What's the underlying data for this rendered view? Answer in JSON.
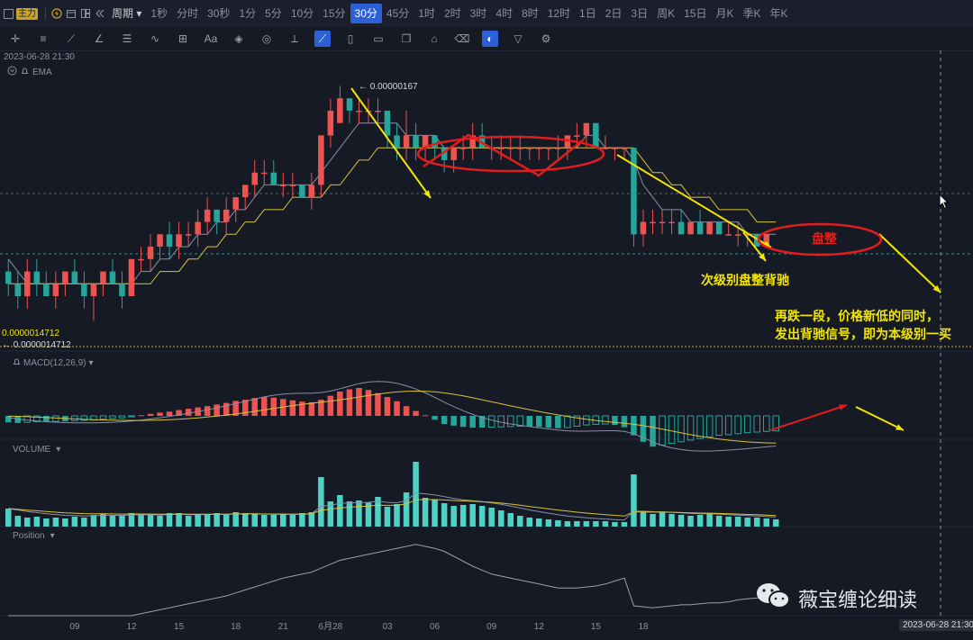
{
  "toolbar": {
    "main_label": "主力",
    "period_label": "周期",
    "periods": [
      "1秒",
      "分时",
      "30秒",
      "1分",
      "5分",
      "10分",
      "15分",
      "30分",
      "45分",
      "1时",
      "2时",
      "3时",
      "4时",
      "8时",
      "12时",
      "1日",
      "2日",
      "3日",
      "周K",
      "15日",
      "月K",
      "季K",
      "年K"
    ],
    "active_period": "30分",
    "tools": [
      "crosshair-icon",
      "horizontal-line-icon",
      "trend-line-icon",
      "angle-icon",
      "channel-icon",
      "wave-icon",
      "measure-icon",
      "text-icon",
      "fib-icon",
      "pattern-icon",
      "ruler-icon",
      "brush-icon",
      "shapes-icon",
      "note-icon",
      "copy-icon",
      "lock-icon",
      "trash-icon",
      "magnet-icon",
      "filter-icon",
      "settings-icon"
    ]
  },
  "chart_header": {
    "datetime": "2023-06-28 21:30",
    "indicator": "EMA"
  },
  "price_labels": {
    "high_marker": "← 0.00000167",
    "low_value": "0.0000014712",
    "low_marker": "← 0.0000014712"
  },
  "panels": {
    "macd_label": "MACD(12,26,9)",
    "volume_label": "VOLUME",
    "position_label": "Position"
  },
  "annotations": {
    "consolidation": "盘整",
    "divergence": "次级别盘整背驰",
    "note_line1": "再跌一段，价格新低的同时，",
    "note_line2": "发出背驰信号，即为本级别一买"
  },
  "watermark": "薇宝缠论细读",
  "crosshair_time": "2023-06-28 21:30",
  "colors": {
    "up": "#ef5350",
    "down": "#26a69a",
    "annotation_yellow": "#f3e600",
    "annotation_red": "#e01e1e"
  },
  "chart_data": {
    "type": "candlestick",
    "x_axis_labels": [
      "09",
      "12",
      "15",
      "18",
      "21",
      "6月28",
      "03",
      "06",
      "09",
      "12",
      "15",
      "18"
    ],
    "price_range": [
      1.46e-06,
      1.69e-06
    ],
    "candles": [
      {
        "o": 1.52e-06,
        "h": 1.53e-06,
        "l": 1.5e-06,
        "c": 1.51e-06
      },
      {
        "o": 1.51e-06,
        "h": 1.52e-06,
        "l": 1.49e-06,
        "c": 1.5e-06
      },
      {
        "o": 1.5e-06,
        "h": 1.53e-06,
        "l": 1.49e-06,
        "c": 1.52e-06
      },
      {
        "o": 1.52e-06,
        "h": 1.53e-06,
        "l": 1.5e-06,
        "c": 1.51e-06
      },
      {
        "o": 1.51e-06,
        "h": 1.52e-06,
        "l": 1.5e-06,
        "c": 1.5e-06
      },
      {
        "o": 1.5e-06,
        "h": 1.52e-06,
        "l": 1.49e-06,
        "c": 1.51e-06
      },
      {
        "o": 1.51e-06,
        "h": 1.52e-06,
        "l": 1.5e-06,
        "c": 1.52e-06
      },
      {
        "o": 1.52e-06,
        "h": 1.53e-06,
        "l": 1.51e-06,
        "c": 1.51e-06
      },
      {
        "o": 1.51e-06,
        "h": 1.52e-06,
        "l": 1.49e-06,
        "c": 1.5e-06
      },
      {
        "o": 1.5e-06,
        "h": 1.51e-06,
        "l": 1.48e-06,
        "c": 1.51e-06
      },
      {
        "o": 1.51e-06,
        "h": 1.52e-06,
        "l": 1.5e-06,
        "c": 1.52e-06
      },
      {
        "o": 1.52e-06,
        "h": 1.53e-06,
        "l": 1.51e-06,
        "c": 1.51e-06
      },
      {
        "o": 1.51e-06,
        "h": 1.52e-06,
        "l": 1.49e-06,
        "c": 1.5e-06
      },
      {
        "o": 1.5e-06,
        "h": 1.53e-06,
        "l": 1.5e-06,
        "c": 1.53e-06
      },
      {
        "o": 1.53e-06,
        "h": 1.54e-06,
        "l": 1.52e-06,
        "c": 1.53e-06
      },
      {
        "o": 1.53e-06,
        "h": 1.55e-06,
        "l": 1.52e-06,
        "c": 1.54e-06
      },
      {
        "o": 1.54e-06,
        "h": 1.55e-06,
        "l": 1.53e-06,
        "c": 1.55e-06
      },
      {
        "o": 1.55e-06,
        "h": 1.56e-06,
        "l": 1.53e-06,
        "c": 1.54e-06
      },
      {
        "o": 1.54e-06,
        "h": 1.56e-06,
        "l": 1.53e-06,
        "c": 1.55e-06
      },
      {
        "o": 1.55e-06,
        "h": 1.56e-06,
        "l": 1.54e-06,
        "c": 1.55e-06
      },
      {
        "o": 1.55e-06,
        "h": 1.57e-06,
        "l": 1.54e-06,
        "c": 1.56e-06
      },
      {
        "o": 1.56e-06,
        "h": 1.58e-06,
        "l": 1.55e-06,
        "c": 1.57e-06
      },
      {
        "o": 1.57e-06,
        "h": 1.57e-06,
        "l": 1.55e-06,
        "c": 1.56e-06
      },
      {
        "o": 1.56e-06,
        "h": 1.58e-06,
        "l": 1.55e-06,
        "c": 1.57e-06
      },
      {
        "o": 1.57e-06,
        "h": 1.58e-06,
        "l": 1.56e-06,
        "c": 1.58e-06
      },
      {
        "o": 1.58e-06,
        "h": 1.59e-06,
        "l": 1.57e-06,
        "c": 1.59e-06
      },
      {
        "o": 1.59e-06,
        "h": 1.61e-06,
        "l": 1.58e-06,
        "c": 1.6e-06
      },
      {
        "o": 1.6e-06,
        "h": 1.61e-06,
        "l": 1.59e-06,
        "c": 1.6e-06
      },
      {
        "o": 1.6e-06,
        "h": 1.61e-06,
        "l": 1.59e-06,
        "c": 1.59e-06
      },
      {
        "o": 1.59e-06,
        "h": 1.6e-06,
        "l": 1.58e-06,
        "c": 1.59e-06
      },
      {
        "o": 1.59e-06,
        "h": 1.6e-06,
        "l": 1.58e-06,
        "c": 1.59e-06
      },
      {
        "o": 1.59e-06,
        "h": 1.59e-06,
        "l": 1.58e-06,
        "c": 1.58e-06
      },
      {
        "o": 1.58e-06,
        "h": 1.6e-06,
        "l": 1.57e-06,
        "c": 1.59e-06
      },
      {
        "o": 1.59e-06,
        "h": 1.63e-06,
        "l": 1.58e-06,
        "c": 1.63e-06
      },
      {
        "o": 1.63e-06,
        "h": 1.66e-06,
        "l": 1.62e-06,
        "c": 1.65e-06
      },
      {
        "o": 1.64e-06,
        "h": 1.67e-06,
        "l": 1.64e-06,
        "c": 1.66e-06
      },
      {
        "o": 1.66e-06,
        "h": 1.66e-06,
        "l": 1.64e-06,
        "c": 1.65e-06
      },
      {
        "o": 1.65e-06,
        "h": 1.66e-06,
        "l": 1.64e-06,
        "c": 1.65e-06
      },
      {
        "o": 1.65e-06,
        "h": 1.66e-06,
        "l": 1.64e-06,
        "c": 1.65e-06
      },
      {
        "o": 1.65e-06,
        "h": 1.66e-06,
        "l": 1.64e-06,
        "c": 1.65e-06
      },
      {
        "o": 1.65e-06,
        "h": 1.65e-06,
        "l": 1.62e-06,
        "c": 1.63e-06
      },
      {
        "o": 1.63e-06,
        "h": 1.64e-06,
        "l": 1.61e-06,
        "c": 1.62e-06
      },
      {
        "o": 1.62e-06,
        "h": 1.65e-06,
        "l": 1.61e-06,
        "c": 1.63e-06
      },
      {
        "o": 1.63e-06,
        "h": 1.64e-06,
        "l": 1.61e-06,
        "c": 1.62e-06
      },
      {
        "o": 1.62e-06,
        "h": 1.63e-06,
        "l": 1.61e-06,
        "c": 1.63e-06
      },
      {
        "o": 1.63e-06,
        "h": 1.63e-06,
        "l": 1.61e-06,
        "c": 1.62e-06
      },
      {
        "o": 1.62e-06,
        "h": 1.62e-06,
        "l": 1.6e-06,
        "c": 1.61e-06
      },
      {
        "o": 1.61e-06,
        "h": 1.62e-06,
        "l": 1.6e-06,
        "c": 1.62e-06
      },
      {
        "o": 1.62e-06,
        "h": 1.63e-06,
        "l": 1.61e-06,
        "c": 1.62e-06
      },
      {
        "o": 1.62e-06,
        "h": 1.64e-06,
        "l": 1.61e-06,
        "c": 1.63e-06
      },
      {
        "o": 1.63e-06,
        "h": 1.64e-06,
        "l": 1.62e-06,
        "c": 1.62e-06
      },
      {
        "o": 1.62e-06,
        "h": 1.63e-06,
        "l": 1.61e-06,
        "c": 1.62e-06
      },
      {
        "o": 1.62e-06,
        "h": 1.63e-06,
        "l": 1.61e-06,
        "c": 1.62e-06
      },
      {
        "o": 1.62e-06,
        "h": 1.63e-06,
        "l": 1.61e-06,
        "c": 1.62e-06
      },
      {
        "o": 1.62e-06,
        "h": 1.63e-06,
        "l": 1.61e-06,
        "c": 1.62e-06
      },
      {
        "o": 1.62e-06,
        "h": 1.62e-06,
        "l": 1.61e-06,
        "c": 1.62e-06
      },
      {
        "o": 1.62e-06,
        "h": 1.62e-06,
        "l": 1.61e-06,
        "c": 1.62e-06
      },
      {
        "o": 1.62e-06,
        "h": 1.62e-06,
        "l": 1.61e-06,
        "c": 1.62e-06
      },
      {
        "o": 1.62e-06,
        "h": 1.63e-06,
        "l": 1.61e-06,
        "c": 1.62e-06
      },
      {
        "o": 1.62e-06,
        "h": 1.63e-06,
        "l": 1.61e-06,
        "c": 1.63e-06
      },
      {
        "o": 1.63e-06,
        "h": 1.64e-06,
        "l": 1.62e-06,
        "c": 1.63e-06
      },
      {
        "o": 1.63e-06,
        "h": 1.64e-06,
        "l": 1.62e-06,
        "c": 1.64e-06
      },
      {
        "o": 1.64e-06,
        "h": 1.64e-06,
        "l": 1.62e-06,
        "c": 1.62e-06
      },
      {
        "o": 1.62e-06,
        "h": 1.63e-06,
        "l": 1.62e-06,
        "c": 1.62e-06
      },
      {
        "o": 1.62e-06,
        "h": 1.62e-06,
        "l": 1.61e-06,
        "c": 1.62e-06
      },
      {
        "o": 1.62e-06,
        "h": 1.62e-06,
        "l": 1.61e-06,
        "c": 1.62e-06
      },
      {
        "o": 1.62e-06,
        "h": 1.62e-06,
        "l": 1.54e-06,
        "c": 1.55e-06
      },
      {
        "o": 1.55e-06,
        "h": 1.57e-06,
        "l": 1.54e-06,
        "c": 1.56e-06
      },
      {
        "o": 1.56e-06,
        "h": 1.57e-06,
        "l": 1.55e-06,
        "c": 1.56e-06
      },
      {
        "o": 1.56e-06,
        "h": 1.57e-06,
        "l": 1.55e-06,
        "c": 1.56e-06
      },
      {
        "o": 1.56e-06,
        "h": 1.57e-06,
        "l": 1.55e-06,
        "c": 1.56e-06
      },
      {
        "o": 1.56e-06,
        "h": 1.57e-06,
        "l": 1.55e-06,
        "c": 1.55e-06
      },
      {
        "o": 1.55e-06,
        "h": 1.56e-06,
        "l": 1.55e-06,
        "c": 1.56e-06
      },
      {
        "o": 1.56e-06,
        "h": 1.57e-06,
        "l": 1.55e-06,
        "c": 1.55e-06
      },
      {
        "o": 1.55e-06,
        "h": 1.56e-06,
        "l": 1.55e-06,
        "c": 1.56e-06
      },
      {
        "o": 1.56e-06,
        "h": 1.56e-06,
        "l": 1.55e-06,
        "c": 1.55e-06
      },
      {
        "o": 1.55e-06,
        "h": 1.56e-06,
        "l": 1.55e-06,
        "c": 1.55e-06
      },
      {
        "o": 1.55e-06,
        "h": 1.56e-06,
        "l": 1.54e-06,
        "c": 1.55e-06
      },
      {
        "o": 1.55e-06,
        "h": 1.55e-06,
        "l": 1.54e-06,
        "c": 1.55e-06
      },
      {
        "o": 1.55e-06,
        "h": 1.55e-06,
        "l": 1.54e-06,
        "c": 1.54e-06
      },
      {
        "o": 1.54e-06,
        "h": 1.55e-06,
        "l": 1.54e-06,
        "c": 1.55e-06
      }
    ],
    "ema_short": [
      1.53e-06,
      1.52e-06,
      1.51e-06,
      1.51e-06,
      1.51e-06,
      1.51e-06,
      1.51e-06,
      1.51e-06,
      1.51e-06,
      1.51e-06,
      1.51e-06,
      1.51e-06,
      1.51e-06,
      1.51e-06,
      1.52e-06,
      1.52e-06,
      1.53e-06,
      1.53e-06,
      1.54e-06,
      1.54e-06,
      1.55e-06,
      1.55e-06,
      1.56e-06,
      1.56e-06,
      1.57e-06,
      1.57e-06,
      1.58e-06,
      1.59e-06,
      1.59e-06,
      1.59e-06,
      1.59e-06,
      1.59e-06,
      1.59e-06,
      1.6e-06,
      1.61e-06,
      1.62e-06,
      1.63e-06,
      1.64e-06,
      1.64e-06,
      1.64e-06,
      1.64e-06,
      1.64e-06,
      1.63e-06,
      1.63e-06,
      1.63e-06,
      1.63e-06,
      1.62e-06,
      1.62e-06,
      1.62e-06,
      1.62e-06,
      1.62e-06,
      1.62e-06,
      1.62e-06,
      1.62e-06,
      1.62e-06,
      1.62e-06,
      1.62e-06,
      1.62e-06,
      1.62e-06,
      1.62e-06,
      1.62e-06,
      1.63e-06,
      1.63e-06,
      1.62e-06,
      1.62e-06,
      1.62e-06,
      1.61e-06,
      1.59e-06,
      1.58e-06,
      1.57e-06,
      1.57e-06,
      1.57e-06,
      1.56e-06,
      1.56e-06,
      1.56e-06,
      1.56e-06,
      1.56e-06,
      1.56e-06,
      1.55e-06,
      1.55e-06,
      1.55e-06,
      1.55e-06
    ],
    "ema_long": [
      1.51e-06,
      1.51e-06,
      1.51e-06,
      1.51e-06,
      1.51e-06,
      1.51e-06,
      1.51e-06,
      1.51e-06,
      1.51e-06,
      1.51e-06,
      1.51e-06,
      1.51e-06,
      1.51e-06,
      1.51e-06,
      1.51e-06,
      1.51e-06,
      1.52e-06,
      1.52e-06,
      1.52e-06,
      1.53e-06,
      1.53e-06,
      1.54e-06,
      1.54e-06,
      1.55e-06,
      1.55e-06,
      1.56e-06,
      1.56e-06,
      1.57e-06,
      1.57e-06,
      1.57e-06,
      1.58e-06,
      1.58e-06,
      1.58e-06,
      1.58e-06,
      1.59e-06,
      1.59e-06,
      1.6e-06,
      1.61e-06,
      1.61e-06,
      1.62e-06,
      1.62e-06,
      1.62e-06,
      1.62e-06,
      1.62e-06,
      1.62e-06,
      1.62e-06,
      1.62e-06,
      1.62e-06,
      1.62e-06,
      1.62e-06,
      1.62e-06,
      1.62e-06,
      1.62e-06,
      1.62e-06,
      1.62e-06,
      1.62e-06,
      1.62e-06,
      1.62e-06,
      1.62e-06,
      1.62e-06,
      1.62e-06,
      1.62e-06,
      1.62e-06,
      1.62e-06,
      1.62e-06,
      1.62e-06,
      1.62e-06,
      1.61e-06,
      1.6e-06,
      1.6e-06,
      1.59e-06,
      1.59e-06,
      1.58e-06,
      1.58e-06,
      1.58e-06,
      1.57e-06,
      1.57e-06,
      1.57e-06,
      1.57e-06,
      1.56e-06,
      1.56e-06,
      1.56e-06
    ],
    "macd_hist": [
      -0.2,
      -0.22,
      -0.2,
      -0.18,
      -0.18,
      -0.17,
      -0.17,
      -0.15,
      -0.14,
      -0.13,
      -0.1,
      -0.08,
      -0.06,
      -0.02,
      0.02,
      0.06,
      0.1,
      0.13,
      0.18,
      0.22,
      0.26,
      0.3,
      0.35,
      0.4,
      0.46,
      0.5,
      0.55,
      0.58,
      0.56,
      0.52,
      0.48,
      0.44,
      0.42,
      0.5,
      0.62,
      0.75,
      0.82,
      0.86,
      0.8,
      0.7,
      0.58,
      0.45,
      0.3,
      0.15,
      0.02,
      -0.12,
      -0.25,
      -0.3,
      -0.34,
      -0.36,
      -0.36,
      -0.35,
      -0.34,
      -0.33,
      -0.32,
      -0.33,
      -0.34,
      -0.36,
      -0.38,
      -0.36,
      -0.32,
      -0.28,
      -0.26,
      -0.25,
      -0.28,
      -0.35,
      -0.6,
      -0.8,
      -0.95,
      -0.9,
      -0.85,
      -0.8,
      -0.75,
      -0.7,
      -0.65,
      -0.6,
      -0.58,
      -0.55,
      -0.52,
      -0.5,
      -0.48,
      -0.46
    ],
    "volume": [
      2.0,
      1.2,
      1.0,
      1.1,
      0.9,
      1.0,
      0.9,
      1.1,
      1.0,
      1.3,
      1.4,
      1.3,
      1.2,
      1.5,
      1.4,
      1.3,
      1.2,
      1.5,
      1.5,
      1.2,
      1.3,
      1.4,
      1.5,
      1.3,
      1.6,
      1.5,
      1.4,
      1.3,
      1.3,
      1.4,
      1.3,
      1.5,
      1.6,
      5.5,
      2.8,
      3.5,
      2.8,
      2.9,
      2.7,
      3.3,
      2.2,
      2.5,
      3.8,
      7.2,
      3.2,
      3.0,
      2.6,
      2.3,
      2.4,
      2.5,
      2.3,
      2.1,
      1.8,
      1.5,
      1.2,
      1.0,
      0.9,
      0.8,
      0.7,
      0.6,
      0.6,
      0.6,
      0.6,
      0.6,
      0.5,
      0.5,
      5.8,
      1.6,
      1.4,
      1.6,
      1.4,
      1.3,
      1.2,
      1.3,
      1.4,
      1.2,
      1.1,
      1.1,
      1.0,
      1.0,
      0.9,
      0.8
    ],
    "position": [
      0,
      0,
      0,
      0,
      0,
      0,
      0,
      0,
      0,
      0,
      0,
      0,
      0,
      0,
      0.2,
      0.4,
      0.6,
      0.8,
      1.0,
      1.2,
      1.4,
      1.6,
      1.8,
      2.0,
      2.3,
      2.6,
      2.9,
      3.2,
      3.5,
      3.8,
      4.0,
      4.2,
      4.4,
      4.8,
      5.2,
      5.6,
      5.8,
      6.0,
      6.2,
      6.4,
      6.6,
      6.8,
      7.0,
      7.2,
      7.0,
      6.8,
      6.5,
      6.0,
      5.5,
      5.0,
      4.6,
      4.2,
      4.0,
      3.8,
      3.6,
      3.4,
      3.2,
      3.0,
      2.8,
      2.8,
      2.8,
      2.9,
      3.0,
      3.2,
      3.5,
      3.8,
      1.0,
      0.9,
      0.8,
      0.9,
      1.0,
      1.1,
      1.1,
      1.2,
      1.3,
      1.3,
      1.4,
      1.6,
      1.7,
      1.8,
      1.9,
      1.9
    ]
  }
}
